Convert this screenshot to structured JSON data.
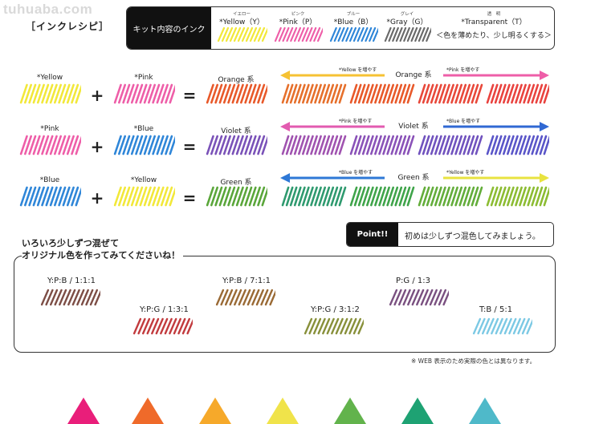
{
  "watermark": "tuhuaba.com",
  "title": "［インクレシピ］",
  "kit": {
    "label": "キット内容のインク",
    "inks": [
      {
        "ruby": "イエロー",
        "name": "*Yellow（Y）",
        "color": "#f2e83a"
      },
      {
        "ruby": "ピンク",
        "name": "*Pink（P）",
        "color": "#ee5ea8"
      },
      {
        "ruby": "ブルー",
        "name": "*Blue（B）",
        "color": "#2f86d8"
      },
      {
        "ruby": "グレイ",
        "name": "*Gray（G）",
        "color": "#6a6a6a"
      }
    ],
    "transparent": {
      "ruby": "透　明",
      "name": "*Transparent（T）",
      "desc": "＜色を薄めたり、少し明るくする＞"
    }
  },
  "recipes": [
    {
      "a": {
        "name": "*Yellow",
        "color": "#f2e83a"
      },
      "b": {
        "name": "*Pink",
        "color": "#ee5ea8"
      },
      "plus": "+",
      "equals": "=",
      "result": {
        "name": "Orange 系",
        "color": "#e8592a"
      },
      "left_hint": "*Yellow を増やす",
      "right_hint": "*Pink を増やす",
      "center_label": "Orange 系",
      "arrow_left_color": "#f6c233",
      "arrow_right_color": "#ee5ea8",
      "gradient": [
        "#e6702c",
        "#e8592a",
        "#e8483a",
        "#e9433f"
      ]
    },
    {
      "a": {
        "name": "*Pink",
        "color": "#ee5ea8"
      },
      "b": {
        "name": "*Blue",
        "color": "#2f86d8"
      },
      "plus": "+",
      "equals": "=",
      "result": {
        "name": "Violet 系",
        "color": "#7a52b8"
      },
      "left_hint": "*Pink を増やす",
      "right_hint": "*Blue を増やす",
      "center_label": "Violet 系",
      "arrow_left_color": "#e25bb0",
      "arrow_right_color": "#3068d3",
      "gradient": [
        "#a053b0",
        "#8a52b8",
        "#7052be",
        "#5a55c8"
      ]
    },
    {
      "a": {
        "name": "*Blue",
        "color": "#2f86d8"
      },
      "b": {
        "name": "*Yellow",
        "color": "#f2e83a"
      },
      "plus": "+",
      "equals": "=",
      "result": {
        "name": "Green 系",
        "color": "#5aa63a"
      },
      "left_hint": "*Blue を増やす",
      "right_hint": "*Yellow を増やす",
      "center_label": "Green 系",
      "arrow_left_color": "#2e78d6",
      "arrow_right_color": "#e8e340",
      "gradient": [
        "#2f9a6f",
        "#3fa44a",
        "#63ad3a",
        "#8cbc32"
      ]
    }
  ],
  "point": {
    "label": "Point!!",
    "message": "初めは少しずつ混色してみましょう。"
  },
  "mix": {
    "heading1": "いろいろ少しずつ混ぜて",
    "heading2": "オリジナル色を作ってみてくださいね！",
    "samples": [
      {
        "ratio": "Y:P:B / 1:1:1",
        "color": "#7d4e46"
      },
      {
        "ratio": "Y:P:G / 1:3:1",
        "color": "#c23b3e"
      },
      {
        "ratio": "Y:P:B / 7:1:1",
        "color": "#9a6a35"
      },
      {
        "ratio": "Y:P:G / 3:1:2",
        "color": "#88903a"
      },
      {
        "ratio": "P:G / 1:3",
        "color": "#7a5080"
      },
      {
        "ratio": "T:B / 5:1",
        "color": "#7cc9e4"
      }
    ]
  },
  "note": "※ WEB 表示のため実際の色とは異なります。",
  "bottom_swatches": [
    "#e91e7a",
    "#ef6a2a",
    "#f6a92a",
    "#f0e34a",
    "#62b34c",
    "#1ea273",
    "#4fb9c9"
  ]
}
